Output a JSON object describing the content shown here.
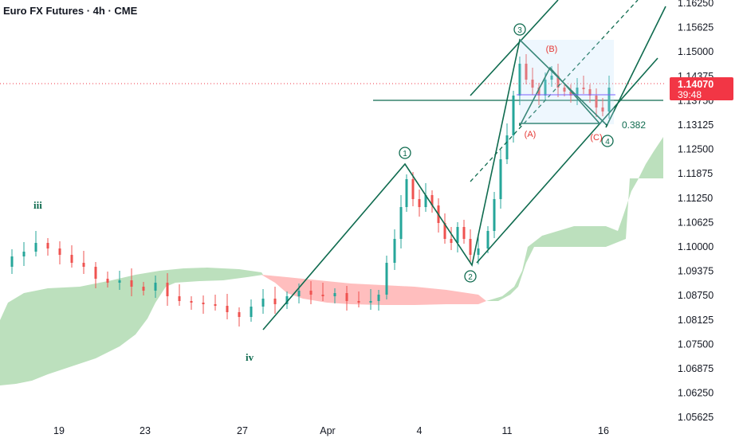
{
  "header": {
    "title": "Euro FX Futures · 4h · CME"
  },
  "price_axis": {
    "ticks": [
      "1.16250",
      "1.15625",
      "1.15000",
      "1.14375",
      "1.13750",
      "1.13125",
      "1.12500",
      "1.11875",
      "1.11250",
      "1.10625",
      "1.10000",
      "1.09375",
      "1.08750",
      "1.08125",
      "1.07500",
      "1.06875",
      "1.06250",
      "1.05625"
    ],
    "last_price": "1.14070",
    "countdown": "39:48",
    "last_color": "#f23645"
  },
  "time_axis": {
    "ticks": [
      "19",
      "23",
      "27",
      "Apr",
      "4",
      "11",
      "16"
    ]
  },
  "waves": {
    "iii": "iii",
    "iv": "iv",
    "w1": "1",
    "w2": "2",
    "w3": "3",
    "w4": "4",
    "A": "(A)",
    "B": "(B)",
    "C": "(C)",
    "fib": "0.382"
  },
  "colors": {
    "up": "#26a69a",
    "down": "#ef5350",
    "wave": "#0f6b4f",
    "cloud_green": "#a5d6a7",
    "cloud_red": "#ffb3b3"
  },
  "chart_data": {
    "type": "candlestick",
    "instrument": "Euro FX Futures",
    "timeframe": "4h",
    "exchange": "CME",
    "ylim": [
      1.0535,
      1.164
    ],
    "last": 1.1407,
    "wave_points": [
      {
        "label": "iv",
        "date": "Mar 27",
        "price": 1.0775
      },
      {
        "label": "1",
        "date": "Apr 3",
        "price": 1.12
      },
      {
        "label": "2",
        "date": "Apr 9",
        "price": 1.096
      },
      {
        "label": "3",
        "date": "Apr 11",
        "price": 1.152
      },
      {
        "label": "(A)",
        "date": "Apr 11",
        "price": 1.13
      },
      {
        "label": "(B)",
        "date": "Apr 14",
        "price": 1.147
      },
      {
        "label": "(C)",
        "date": "Apr 16",
        "price": 1.131
      },
      {
        "label": "4",
        "date": "Apr 16",
        "price": 1.1305
      }
    ],
    "fib_level": {
      "ratio": 0.382,
      "price": 1.131
    },
    "horizontal_level": 1.138
  }
}
